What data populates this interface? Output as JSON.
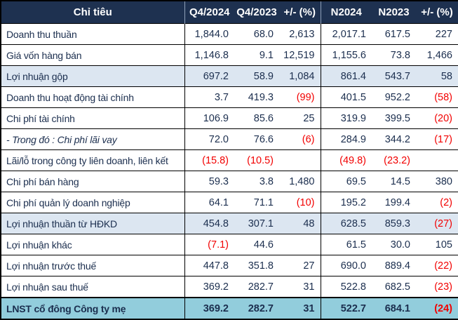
{
  "chart_data": {
    "type": "table",
    "title": "Bang ket qua kinh doanh (financial results table)",
    "columns": [
      "Chỉ tiêu",
      "Q4/2024",
      "Q4/2023",
      "+/- (%)",
      "N2024",
      "N2023",
      "+/- (%)"
    ],
    "rows": [
      {
        "label": "Doanh thu thuần",
        "style": "",
        "values": [
          "1,844.0",
          "68.0",
          "2,613",
          "2,017.1",
          "617.5",
          "227"
        ]
      },
      {
        "label": "Giá vốn hàng bán",
        "style": "",
        "values": [
          "1,146.8",
          "9.1",
          "12,519",
          "1,155.6",
          "73.8",
          "1,466"
        ]
      },
      {
        "label": "Lợi nhuận gộp",
        "style": "highlight",
        "values": [
          "697.2",
          "58.9",
          "1,084",
          "861.4",
          "543.7",
          "58"
        ]
      },
      {
        "label": "Doanh thu hoạt động tài chính",
        "style": "",
        "values": [
          "3.7",
          "419.3",
          "(99)",
          "401.5",
          "952.2",
          "(58)"
        ]
      },
      {
        "label": "Chi phí tài chính",
        "style": "",
        "values": [
          "106.9",
          "85.6",
          "25",
          "319.9",
          "399.5",
          "(20)"
        ]
      },
      {
        "label": "- Trong đó : Chi phí lãi vay",
        "style": "italic",
        "values": [
          "72.0",
          "76.6",
          "(6)",
          "284.9",
          "344.2",
          "(17)"
        ]
      },
      {
        "label": "Lãi/lỗ trong công ty liên doanh, liên kết",
        "style": "",
        "values": [
          "(15.8)",
          "(10.5)",
          "",
          "(49.8)",
          "(23.2)",
          ""
        ]
      },
      {
        "label": "Chi phí bán hàng",
        "style": "",
        "values": [
          "59.3",
          "3.8",
          "1,480",
          "69.5",
          "14.5",
          "380"
        ]
      },
      {
        "label": "Chi phí quản lý doanh nghiệp",
        "style": "",
        "values": [
          "64.1",
          "71.1",
          "(10)",
          "195.2",
          "199.4",
          "(2)"
        ]
      },
      {
        "label": "Lợi nhuận thuần từ HĐKD",
        "style": "highlight",
        "values": [
          "454.8",
          "307.1",
          "48",
          "628.5",
          "859.3",
          "(27)"
        ]
      },
      {
        "label": "Lợi nhuận khác",
        "style": "",
        "values": [
          "(7.1)",
          "44.6",
          "",
          "61.5",
          "30.0",
          "105"
        ]
      },
      {
        "label": "Lợi nhuận trước thuế",
        "style": "",
        "values": [
          "447.8",
          "351.8",
          "27",
          "690.0",
          "889.4",
          "(22)"
        ]
      },
      {
        "label": "Lợi nhuận sau thuế",
        "style": "",
        "values": [
          "369.2",
          "282.7",
          "31",
          "522.8",
          "682.5",
          "(23)"
        ]
      },
      {
        "label": "LNST cổ đông Công ty mẹ",
        "style": "total",
        "values": [
          "369.2",
          "282.7",
          "31",
          "522.7",
          "684.1",
          "(24)"
        ]
      }
    ]
  },
  "colors": {
    "header_bg": "#1E3150",
    "header_text": "#FFFFFF",
    "body_text": "#1B2E4E",
    "negative_text": "#F20000",
    "highlight_row_bg": "#DCE6F1",
    "total_row_bg": "#92CDDC",
    "grid_line": "#000000"
  }
}
